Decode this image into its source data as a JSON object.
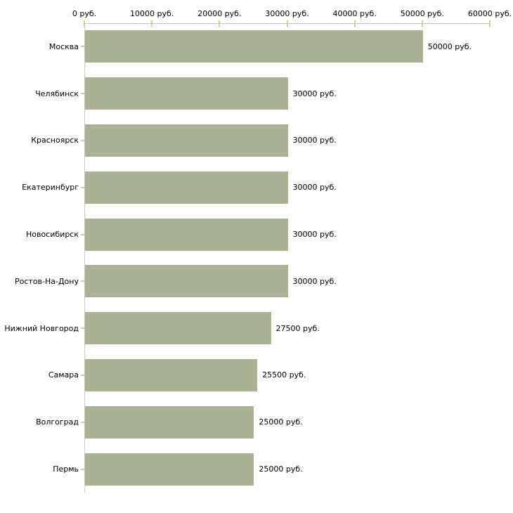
{
  "chart_data": {
    "type": "bar",
    "orientation": "horizontal",
    "title": "",
    "xlabel": "",
    "ylabel": "",
    "unit": "руб.",
    "xlim": [
      0,
      60000
    ],
    "grid": false,
    "legend": false,
    "x_ticks": [
      0,
      10000,
      20000,
      30000,
      40000,
      50000,
      60000
    ],
    "x_tick_labels": [
      "0 руб.",
      "10000 руб.",
      "20000 руб.",
      "30000 руб.",
      "40000 руб.",
      "50000 руб.",
      "60000 руб."
    ],
    "categories": [
      "Москва",
      "Челябинск",
      "Красноярск",
      "Екатеринбург",
      "Новосибирск",
      "Ростов-На-Дону",
      "Нижний Новгород",
      "Самара",
      "Волгоград",
      "Пермь"
    ],
    "values": [
      50000,
      30000,
      30000,
      30000,
      30000,
      30000,
      27500,
      25500,
      25000,
      25000
    ],
    "value_labels": [
      "50000 руб.",
      "30000 руб.",
      "30000 руб.",
      "30000 руб.",
      "30000 руб.",
      "30000 руб.",
      "27500 руб.",
      "25500 руб.",
      "25000 руб.",
      "25000 руб."
    ],
    "bar_color": "#abb194",
    "tick_color": "#cccc99",
    "axis_color": "#c9c9c9",
    "text_color": "#000000"
  }
}
